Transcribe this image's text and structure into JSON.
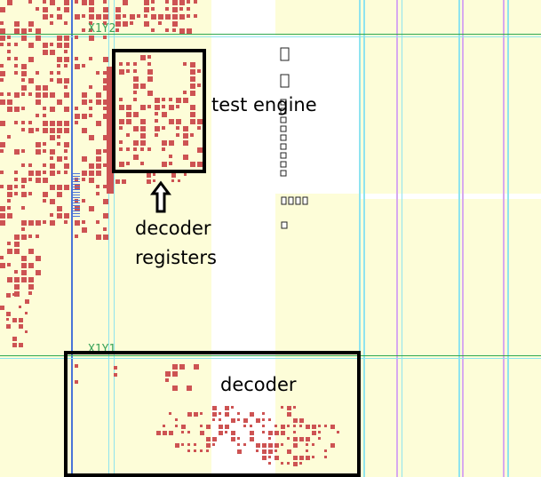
{
  "regions": {
    "upper": "X1Y2",
    "lower": "X1Y1"
  },
  "annotations": {
    "test_engine": "test engine",
    "decoder_registers_line1": "decoder",
    "decoder_registers_line2": "registers",
    "decoder": "decoder"
  },
  "colors": {
    "background": "#ffffff",
    "clock_region": "#fdfdd8",
    "cell": "#cd5353",
    "cell_dark": "#c44848",
    "horizontal_line": "#2fa84f",
    "column_cyan": "#8fe4ef",
    "column_violet": "#d7a9ef",
    "blue_line": "#4a74d8",
    "box_outline": "#000000",
    "region_label": "#3aa35a"
  },
  "icons": {
    "arrow": "up-arrow-icon"
  }
}
